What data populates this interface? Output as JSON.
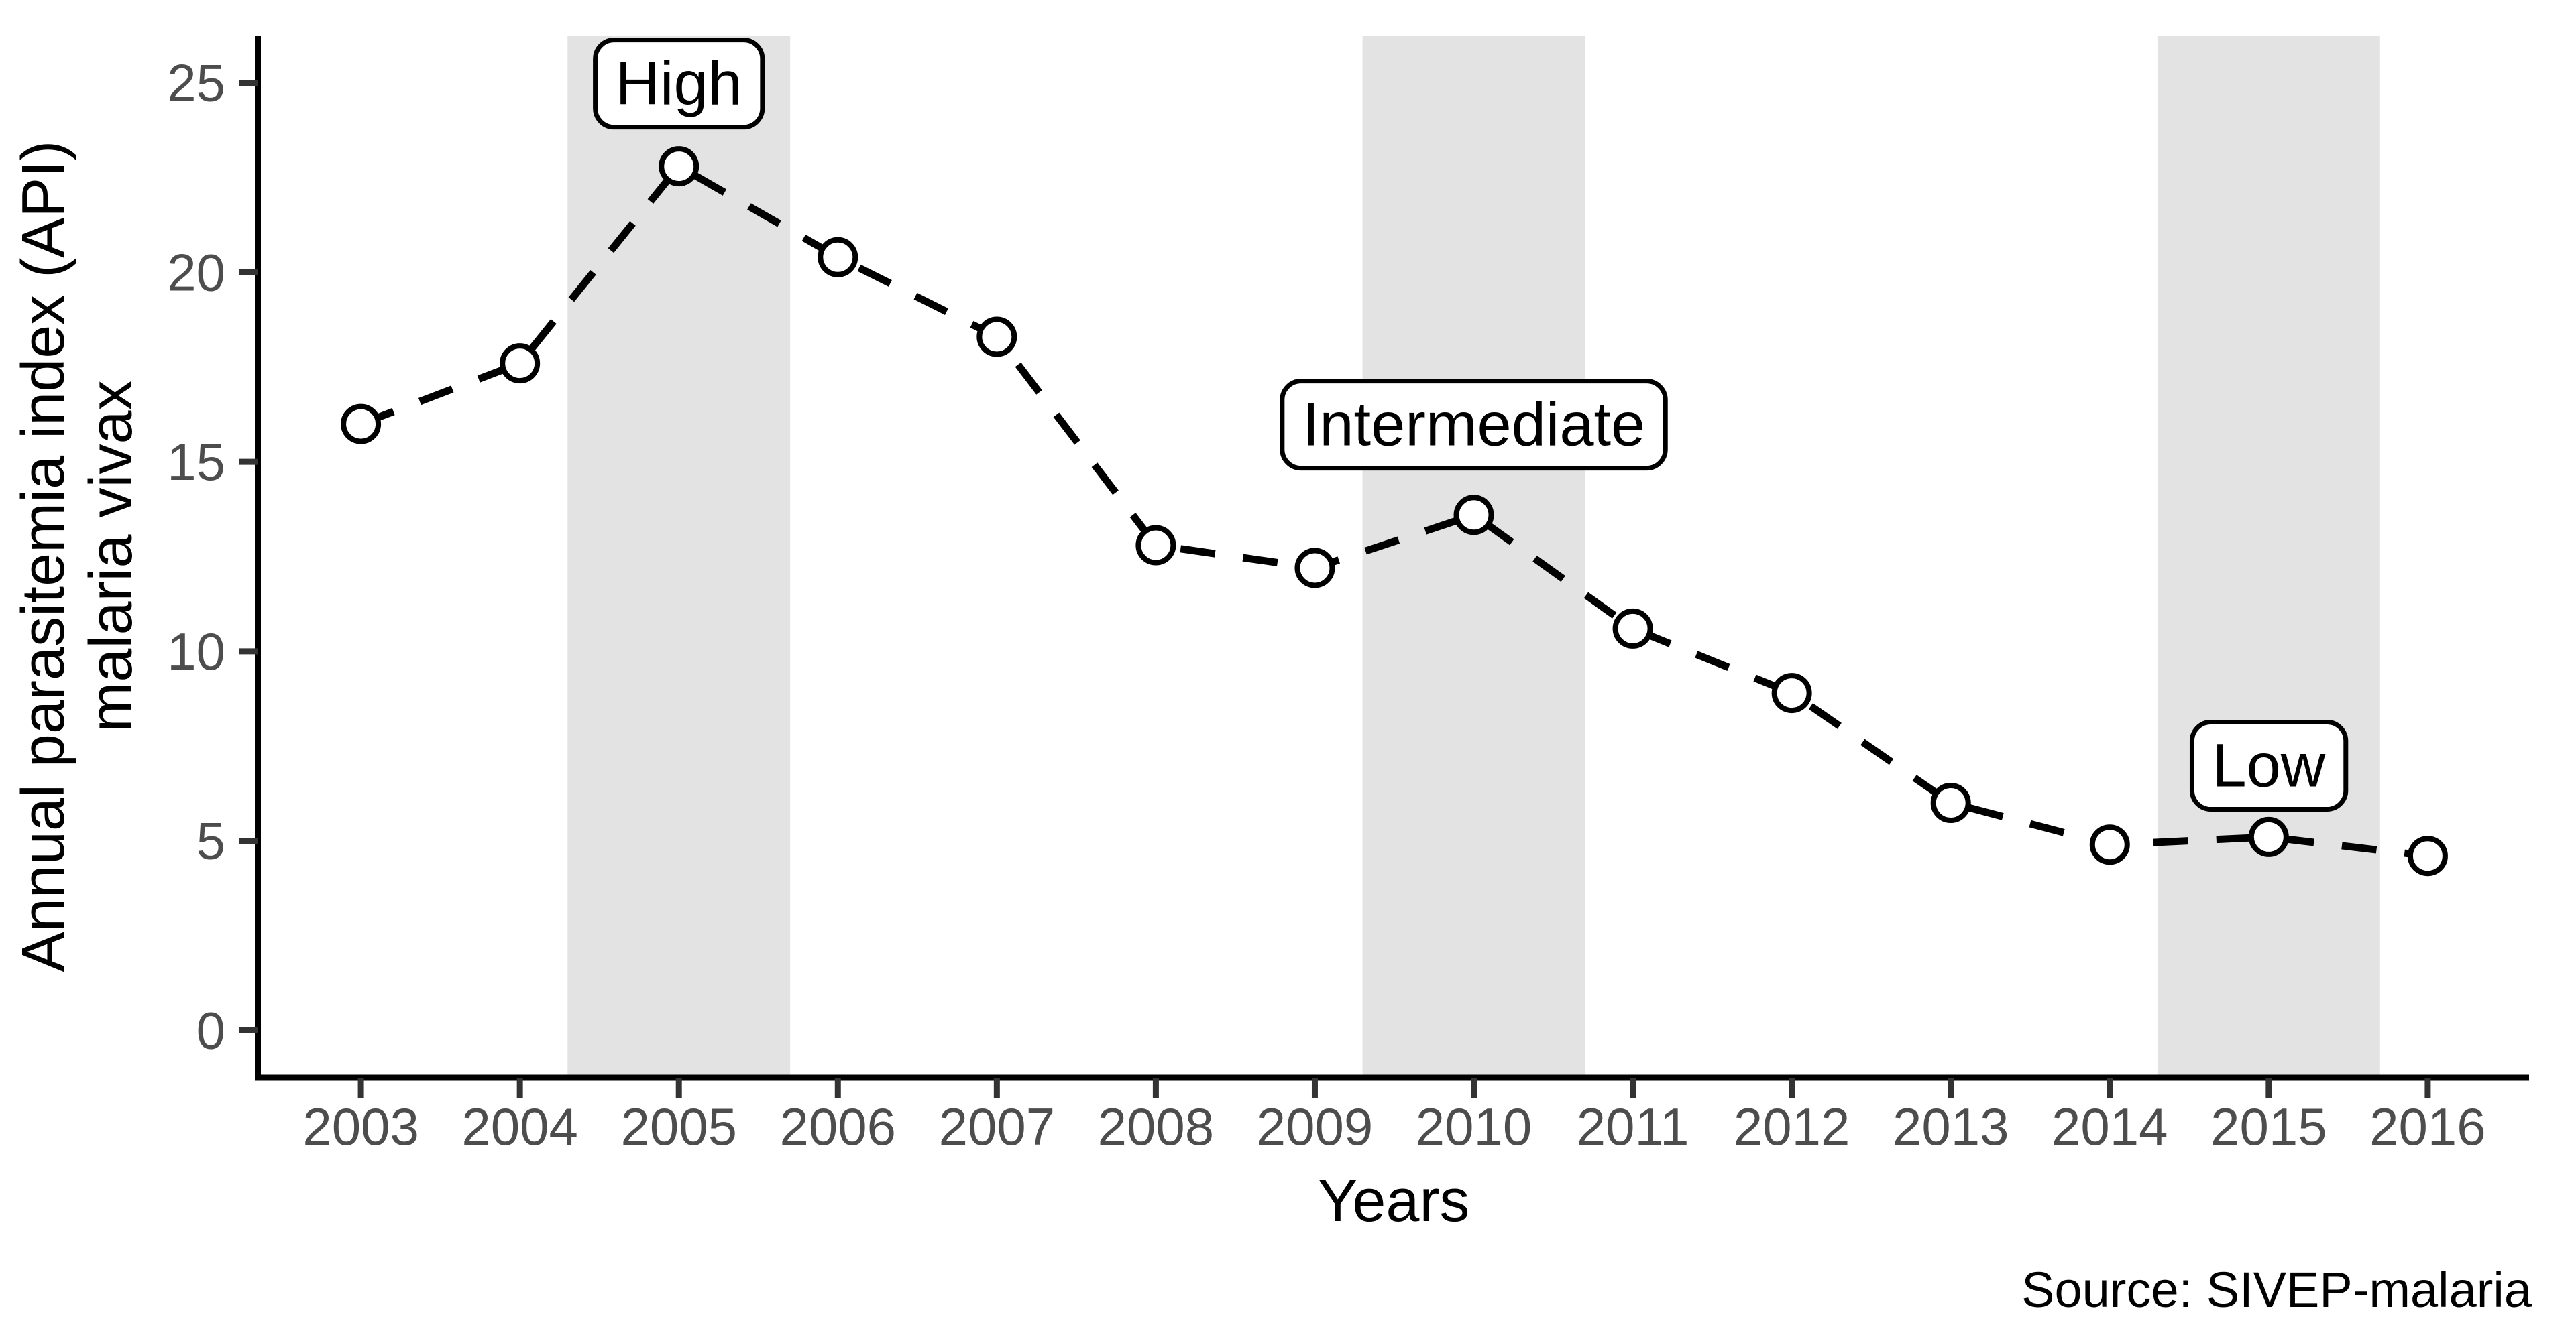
{
  "chart_data": {
    "type": "line",
    "title": "",
    "categories": [
      "2003",
      "2004",
      "2005",
      "2006",
      "2007",
      "2008",
      "2009",
      "2010",
      "2011",
      "2012",
      "2013",
      "2014",
      "2015",
      "2016"
    ],
    "x": [
      2003,
      2004,
      2005,
      2006,
      2007,
      2008,
      2009,
      2010,
      2011,
      2012,
      2013,
      2014,
      2015,
      2016
    ],
    "series": [
      {
        "name": "Annual parasitemia index (API) malaria vivax",
        "values": [
          16.0,
          17.6,
          22.8,
          20.4,
          18.3,
          12.8,
          12.2,
          13.6,
          10.6,
          8.9,
          6.0,
          4.9,
          5.1,
          4.6
        ]
      }
    ],
    "xlabel": "Years",
    "ylabel_lines": [
      "Annual parasitemia index (API)",
      "malaria vivax"
    ],
    "y_ticks": [
      0,
      5,
      10,
      15,
      20,
      25
    ],
    "xlim": [
      2002.35,
      2016.65
    ],
    "ylim": [
      -1.25,
      26.25
    ],
    "grid": false,
    "legend": "none",
    "line_style": "dashed",
    "marker": "open-circle",
    "annotations": [
      {
        "label": "High",
        "band_start": 2004.3,
        "band_end": 2005.7,
        "label_x": 2005,
        "label_y": 25.0
      },
      {
        "label": "Intermediate",
        "band_start": 2009.3,
        "band_end": 2010.7,
        "label_x": 2010,
        "label_y": 16.0
      },
      {
        "label": "Low",
        "band_start": 2014.3,
        "band_end": 2015.7,
        "label_x": 2015,
        "label_y": 7.0
      }
    ],
    "source": "Source: SIVEP-malaria",
    "colors": {
      "line": "#000000",
      "marker_stroke": "#000000",
      "marker_fill": "#ffffff",
      "band": "#e3e3e3",
      "axis": "#000000",
      "tick": "#333333",
      "tick_label": "#4d4d4d",
      "annotation_box_fill": "#ffffff",
      "annotation_box_stroke": "#000000"
    }
  }
}
